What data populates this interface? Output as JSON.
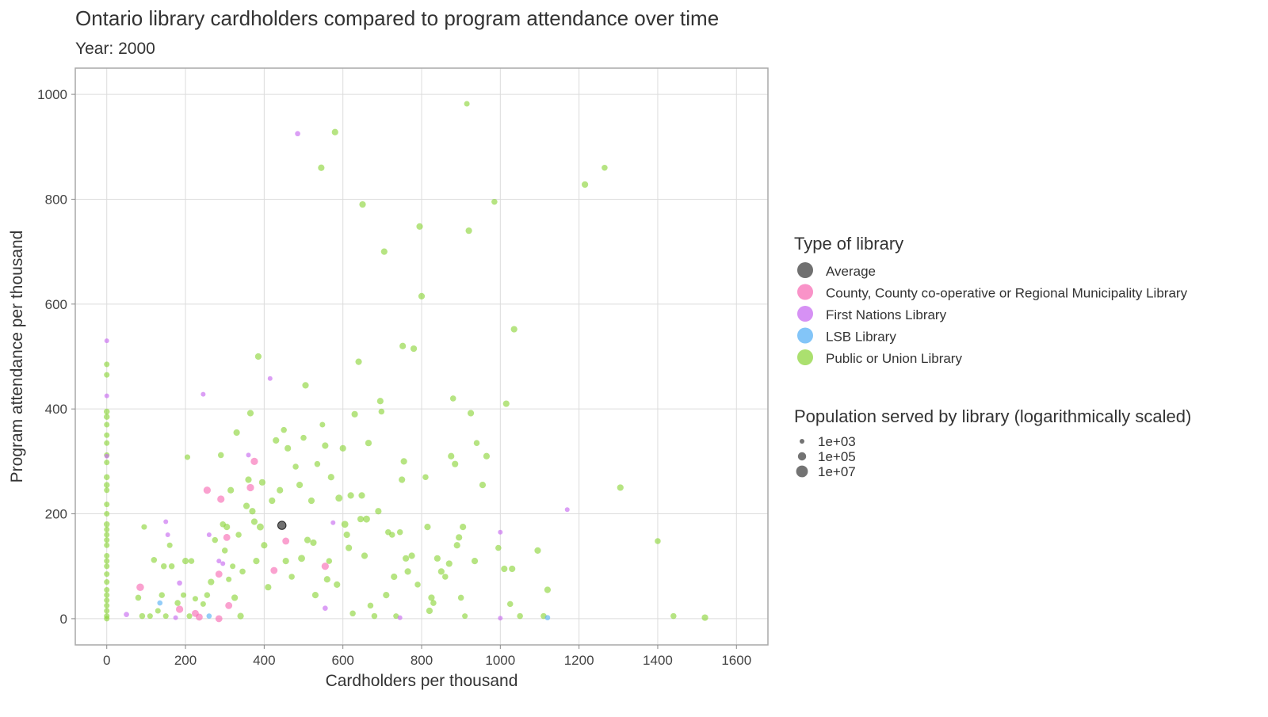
{
  "chart_data": {
    "type": "scatter",
    "title": "Ontario library cardholders compared to program attendance over time",
    "subtitle": "Year: 2000",
    "xlabel": "Cardholders per thousand",
    "ylabel": "Program attendance per thousand",
    "xlim": [
      -80,
      1680
    ],
    "ylim": [
      -50,
      1050
    ],
    "xticks": [
      0,
      200,
      400,
      600,
      800,
      1000,
      1200,
      1400,
      1600
    ],
    "yticks": [
      0,
      200,
      400,
      600,
      800,
      1000
    ],
    "grid": true,
    "legend_position": "right",
    "color_legend": {
      "title": "Type of library",
      "items": [
        {
          "label": "Average",
          "color": "#404040"
        },
        {
          "label": "County, County co-operative or Regional Municipality Library",
          "color": "#f76fb5"
        },
        {
          "label": "First Nations Library",
          "color": "#c86cf0"
        },
        {
          "label": "LSB Library",
          "color": "#5ab2f5"
        },
        {
          "label": "Public or Union Library",
          "color": "#8fd63f"
        }
      ]
    },
    "size_legend": {
      "title": "Population served by library (logarithmically scaled)",
      "items": [
        {
          "label": "1e+03",
          "population": 1000
        },
        {
          "label": "1e+05",
          "population": 100000
        },
        {
          "label": "1e+07",
          "population": 10000000
        }
      ]
    },
    "series": [
      {
        "name": "Average",
        "color": "#404040",
        "points": [
          [
            445,
            178,
            100000
          ]
        ]
      },
      {
        "name": "County, County co-operative or Regional Municipality Library",
        "color": "#f76fb5",
        "points": [
          [
            85,
            60,
            40000
          ],
          [
            185,
            18,
            30000
          ],
          [
            225,
            10,
            20000
          ],
          [
            235,
            3,
            20000
          ],
          [
            255,
            245,
            30000
          ],
          [
            285,
            85,
            20000
          ],
          [
            290,
            228,
            30000
          ],
          [
            305,
            155,
            20000
          ],
          [
            310,
            25,
            20000
          ],
          [
            365,
            250,
            30000
          ],
          [
            375,
            300,
            30000
          ],
          [
            425,
            92,
            20000
          ],
          [
            455,
            148,
            20000
          ],
          [
            555,
            100,
            30000
          ],
          [
            285,
            0,
            20000
          ]
        ]
      },
      {
        "name": "First Nations Library",
        "color": "#c86cf0",
        "points": [
          [
            0,
            530,
            1000
          ],
          [
            0,
            425,
            1000
          ],
          [
            0,
            310,
            1000
          ],
          [
            50,
            8,
            2000
          ],
          [
            150,
            185,
            1000
          ],
          [
            155,
            160,
            1000
          ],
          [
            185,
            68,
            2000
          ],
          [
            175,
            2,
            1000
          ],
          [
            245,
            428,
            1000
          ],
          [
            260,
            160,
            1000
          ],
          [
            285,
            110,
            1000
          ],
          [
            295,
            105,
            1000
          ],
          [
            360,
            312,
            1000
          ],
          [
            415,
            458,
            1000
          ],
          [
            485,
            925,
            2000
          ],
          [
            555,
            20,
            2000
          ],
          [
            575,
            183,
            1000
          ],
          [
            745,
            2,
            1000
          ],
          [
            1000,
            165,
            1000
          ],
          [
            1170,
            208,
            1000
          ],
          [
            1000,
            1,
            1000
          ]
        ]
      },
      {
        "name": "LSB Library",
        "color": "#5ab2f5",
        "points": [
          [
            135,
            30,
            2000
          ],
          [
            260,
            5,
            2000
          ],
          [
            1120,
            2,
            2000
          ]
        ]
      },
      {
        "name": "Public or Union Library",
        "color": "#8fd63f",
        "points": [
          [
            0,
            485,
            3000
          ],
          [
            0,
            465,
            3000
          ],
          [
            0,
            395,
            5000
          ],
          [
            0,
            385,
            5000
          ],
          [
            0,
            370,
            3000
          ],
          [
            0,
            350,
            3000
          ],
          [
            0,
            335,
            3000
          ],
          [
            0,
            312,
            3000
          ],
          [
            0,
            298,
            3000
          ],
          [
            0,
            270,
            5000
          ],
          [
            0,
            255,
            5000
          ],
          [
            0,
            245,
            3000
          ],
          [
            0,
            218,
            3000
          ],
          [
            0,
            200,
            3000
          ],
          [
            0,
            180,
            5000
          ],
          [
            0,
            170,
            3000
          ],
          [
            0,
            160,
            3000
          ],
          [
            0,
            150,
            3000
          ],
          [
            0,
            140,
            3000
          ],
          [
            0,
            120,
            3000
          ],
          [
            0,
            110,
            3000
          ],
          [
            0,
            100,
            3000
          ],
          [
            0,
            85,
            3000
          ],
          [
            0,
            70,
            3000
          ],
          [
            0,
            55,
            3000
          ],
          [
            0,
            45,
            3000
          ],
          [
            0,
            35,
            3000
          ],
          [
            0,
            25,
            3000
          ],
          [
            0,
            15,
            3000
          ],
          [
            0,
            5,
            3000
          ],
          [
            0,
            0,
            3000
          ],
          [
            80,
            40,
            5000
          ],
          [
            90,
            5,
            5000
          ],
          [
            95,
            175,
            3000
          ],
          [
            110,
            5,
            3000
          ],
          [
            120,
            112,
            5000
          ],
          [
            130,
            15,
            3000
          ],
          [
            140,
            45,
            5000
          ],
          [
            145,
            100,
            5000
          ],
          [
            150,
            5,
            3000
          ],
          [
            160,
            140,
            3000
          ],
          [
            165,
            100,
            5000
          ],
          [
            180,
            30,
            5000
          ],
          [
            195,
            45,
            3000
          ],
          [
            200,
            110,
            10000
          ],
          [
            205,
            308,
            3000
          ],
          [
            210,
            5,
            3000
          ],
          [
            215,
            110,
            5000
          ],
          [
            225,
            38,
            3000
          ],
          [
            245,
            28,
            3000
          ],
          [
            255,
            45,
            5000
          ],
          [
            265,
            70,
            10000
          ],
          [
            275,
            150,
            5000
          ],
          [
            290,
            312,
            5000
          ],
          [
            295,
            180,
            5000
          ],
          [
            300,
            130,
            5000
          ],
          [
            305,
            175,
            10000
          ],
          [
            310,
            75,
            3000
          ],
          [
            315,
            245,
            10000
          ],
          [
            320,
            100,
            3000
          ],
          [
            325,
            40,
            10000
          ],
          [
            330,
            355,
            10000
          ],
          [
            335,
            160,
            5000
          ],
          [
            340,
            5,
            10000
          ],
          [
            345,
            90,
            5000
          ],
          [
            355,
            215,
            10000
          ],
          [
            360,
            265,
            10000
          ],
          [
            365,
            392,
            10000
          ],
          [
            370,
            205,
            10000
          ],
          [
            375,
            185,
            10000
          ],
          [
            380,
            110,
            10000
          ],
          [
            385,
            500,
            10000
          ],
          [
            390,
            175,
            20000
          ],
          [
            395,
            260,
            10000
          ],
          [
            400,
            140,
            10000
          ],
          [
            410,
            60,
            10000
          ],
          [
            420,
            225,
            10000
          ],
          [
            430,
            340,
            10000
          ],
          [
            440,
            245,
            10000
          ],
          [
            450,
            360,
            5000
          ],
          [
            455,
            110,
            10000
          ],
          [
            460,
            325,
            10000
          ],
          [
            470,
            80,
            5000
          ],
          [
            480,
            290,
            5000
          ],
          [
            490,
            255,
            10000
          ],
          [
            495,
            115,
            20000
          ],
          [
            500,
            345,
            5000
          ],
          [
            505,
            445,
            10000
          ],
          [
            510,
            150,
            10000
          ],
          [
            520,
            225,
            10000
          ],
          [
            525,
            145,
            10000
          ],
          [
            530,
            45,
            10000
          ],
          [
            535,
            295,
            5000
          ],
          [
            545,
            860,
            10000
          ],
          [
            548,
            370,
            3000
          ],
          [
            555,
            330,
            10000
          ],
          [
            560,
            75,
            10000
          ],
          [
            565,
            110,
            5000
          ],
          [
            570,
            270,
            10000
          ],
          [
            580,
            928,
            10000
          ],
          [
            585,
            65,
            10000
          ],
          [
            590,
            230,
            20000
          ],
          [
            600,
            325,
            10000
          ],
          [
            605,
            180,
            20000
          ],
          [
            610,
            160,
            10000
          ],
          [
            615,
            135,
            10000
          ],
          [
            620,
            235,
            10000
          ],
          [
            625,
            10,
            5000
          ],
          [
            630,
            390,
            10000
          ],
          [
            640,
            490,
            10000
          ],
          [
            645,
            190,
            10000
          ],
          [
            648,
            235,
            10000
          ],
          [
            650,
            790,
            10000
          ],
          [
            655,
            120,
            10000
          ],
          [
            660,
            190,
            20000
          ],
          [
            665,
            335,
            10000
          ],
          [
            670,
            25,
            5000
          ],
          [
            680,
            5,
            5000
          ],
          [
            690,
            205,
            10000
          ],
          [
            695,
            415,
            10000
          ],
          [
            698,
            395,
            5000
          ],
          [
            705,
            700,
            10000
          ],
          [
            710,
            45,
            10000
          ],
          [
            715,
            165,
            5000
          ],
          [
            725,
            160,
            5000
          ],
          [
            730,
            80,
            10000
          ],
          [
            735,
            5,
            3000
          ],
          [
            745,
            165,
            5000
          ],
          [
            750,
            265,
            10000
          ],
          [
            752,
            520,
            10000
          ],
          [
            755,
            300,
            10000
          ],
          [
            760,
            115,
            10000
          ],
          [
            765,
            90,
            10000
          ],
          [
            775,
            120,
            10000
          ],
          [
            780,
            515,
            10000
          ],
          [
            790,
            65,
            5000
          ],
          [
            795,
            748,
            10000
          ],
          [
            800,
            615,
            10000
          ],
          [
            810,
            270,
            5000
          ],
          [
            815,
            175,
            10000
          ],
          [
            820,
            15,
            10000
          ],
          [
            825,
            40,
            10000
          ],
          [
            830,
            30,
            5000
          ],
          [
            840,
            115,
            10000
          ],
          [
            850,
            90,
            10000
          ],
          [
            860,
            80,
            5000
          ],
          [
            870,
            105,
            10000
          ],
          [
            875,
            310,
            10000
          ],
          [
            880,
            420,
            5000
          ],
          [
            885,
            295,
            10000
          ],
          [
            890,
            140,
            10000
          ],
          [
            895,
            155,
            10000
          ],
          [
            900,
            40,
            5000
          ],
          [
            905,
            175,
            10000
          ],
          [
            910,
            5,
            3000
          ],
          [
            915,
            982,
            3000
          ],
          [
            920,
            740,
            10000
          ],
          [
            925,
            392,
            10000
          ],
          [
            935,
            110,
            10000
          ],
          [
            940,
            335,
            5000
          ],
          [
            955,
            255,
            10000
          ],
          [
            965,
            310,
            10000
          ],
          [
            985,
            795,
            5000
          ],
          [
            995,
            135,
            5000
          ],
          [
            1010,
            95,
            10000
          ],
          [
            1015,
            410,
            10000
          ],
          [
            1025,
            28,
            5000
          ],
          [
            1030,
            95,
            10000
          ],
          [
            1035,
            552,
            10000
          ],
          [
            1050,
            5,
            5000
          ],
          [
            1095,
            130,
            10000
          ],
          [
            1110,
            5,
            5000
          ],
          [
            1120,
            55,
            10000
          ],
          [
            1215,
            828,
            10000
          ],
          [
            1265,
            860,
            5000
          ],
          [
            1305,
            250,
            10000
          ],
          [
            1400,
            148,
            5000
          ],
          [
            1440,
            5,
            5000
          ],
          [
            1520,
            2,
            10000
          ]
        ]
      }
    ]
  }
}
